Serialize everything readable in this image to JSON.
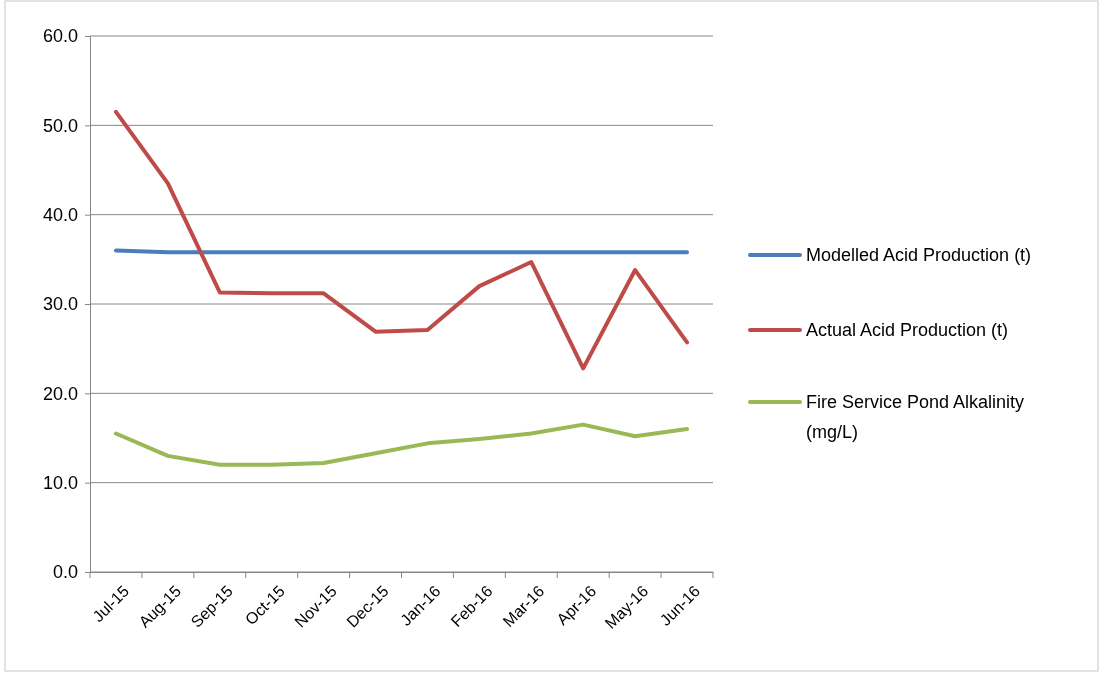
{
  "chart_data": {
    "type": "line",
    "categories": [
      "Jul-15",
      "Aug-15",
      "Sep-15",
      "Oct-15",
      "Nov-15",
      "Dec-15",
      "Jan-16",
      "Feb-16",
      "Mar-16",
      "Apr-16",
      "May-16",
      "Jun-16"
    ],
    "series": [
      {
        "name": "Modelled Acid Production (t)",
        "color": "#4a7ebb",
        "values": [
          36.0,
          35.8,
          35.8,
          35.8,
          35.8,
          35.8,
          35.8,
          35.8,
          35.8,
          35.8,
          35.8,
          35.8
        ]
      },
      {
        "name": "Actual Acid Production (t)",
        "color": "#be4b48",
        "values": [
          51.5,
          43.5,
          31.3,
          31.2,
          31.2,
          26.9,
          27.1,
          32.0,
          34.7,
          22.8,
          33.8,
          25.7
        ]
      },
      {
        "name": "Fire Service Pond Alkalinity (mg/L)",
        "color": "#98b954",
        "values": [
          15.5,
          13.0,
          12.0,
          12.0,
          12.2,
          13.3,
          14.4,
          14.9,
          15.5,
          16.5,
          15.2,
          16.0
        ]
      }
    ],
    "ylim": [
      0,
      60
    ],
    "yticks": [
      {
        "value": 0,
        "label": "0.0"
      },
      {
        "value": 10,
        "label": "10.0"
      },
      {
        "value": 20,
        "label": "20.0"
      },
      {
        "value": 30,
        "label": "30.0"
      },
      {
        "value": 40,
        "label": "40.0"
      },
      {
        "value": 50,
        "label": "50.0"
      },
      {
        "value": 60,
        "label": "60.0"
      }
    ],
    "grid": "y",
    "legend": "right",
    "marker": "none",
    "line_style": "solid"
  }
}
